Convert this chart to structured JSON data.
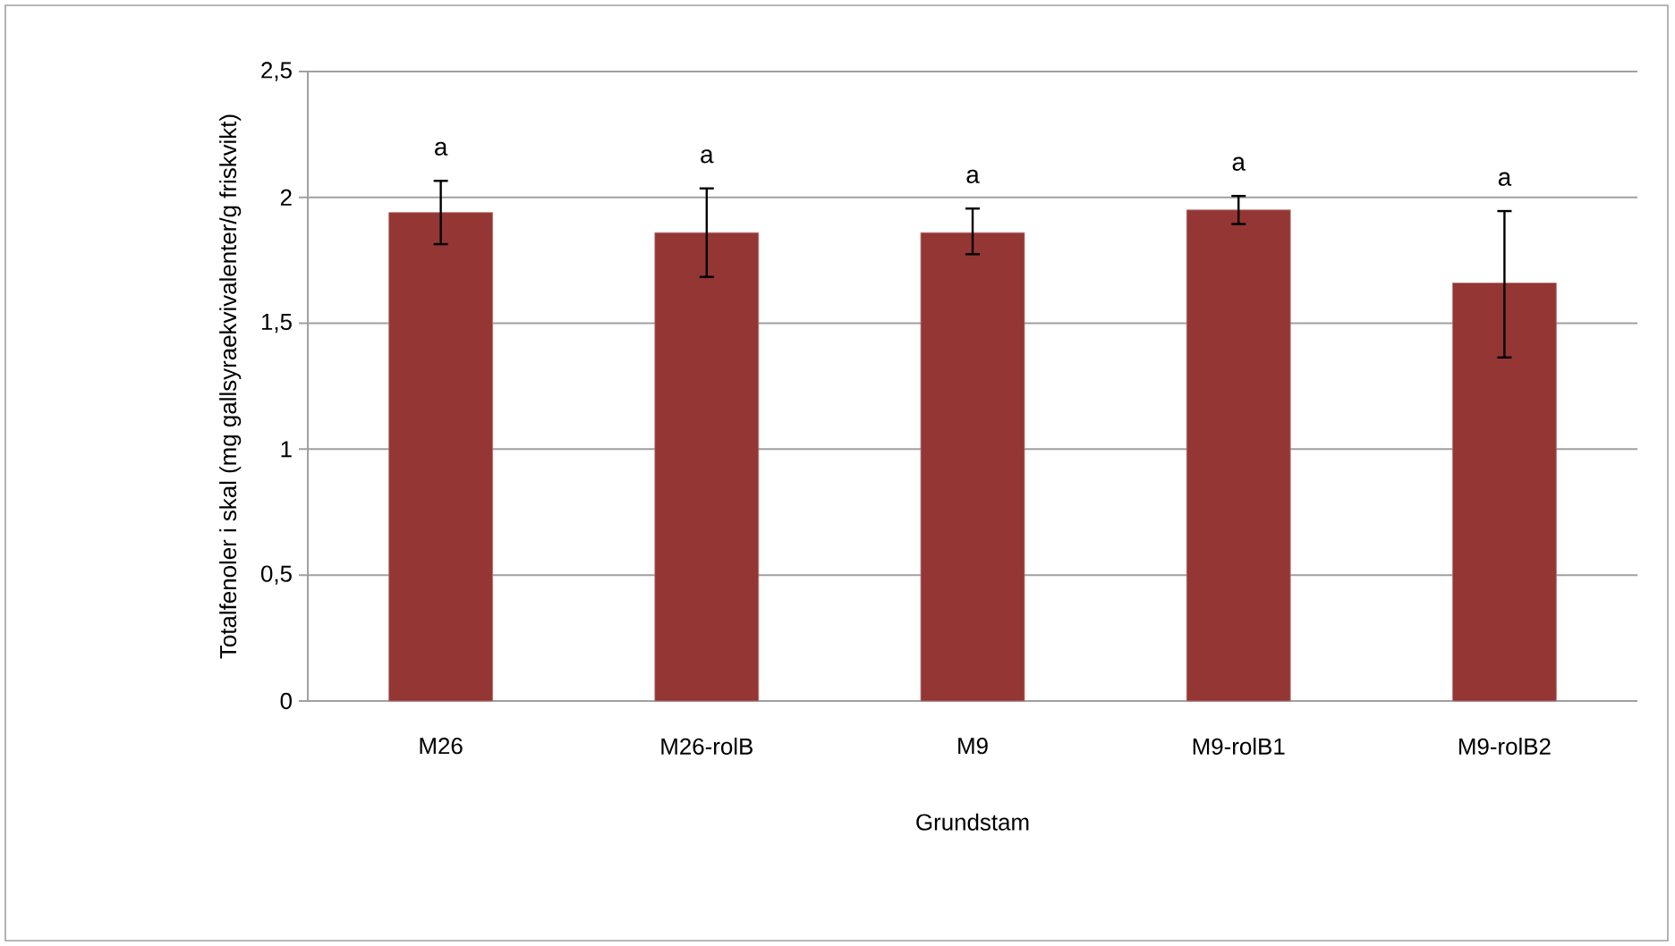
{
  "chart_data": {
    "type": "bar",
    "xlabel": "Grundstam",
    "ylabel": "Totalfenoler i skal (mg gallsyraekvivalenter/g friskvikt)",
    "categories": [
      "M26",
      "M26-rolB",
      "M9",
      "M9-rolB1",
      "M9-rolB2"
    ],
    "values": [
      1.94,
      1.86,
      1.86,
      1.95,
      1.66
    ],
    "errors": [
      [
        1.81,
        2.07
      ],
      [
        1.68,
        2.04
      ],
      [
        1.77,
        1.96
      ],
      [
        1.89,
        2.01
      ],
      [
        1.36,
        1.95
      ]
    ],
    "color": "#943634",
    "ylim": [
      0,
      2.5
    ],
    "yticks": [
      0,
      {
        "value": 0.5,
        "label": "0,5"
      },
      1,
      {
        "value": 1.5,
        "label": "1,5"
      },
      2,
      {
        "value": 2.5,
        "label": "2,5"
      }
    ],
    "grid": "y",
    "annotations": [
      "a",
      "a",
      "a",
      "a",
      "a"
    ]
  }
}
